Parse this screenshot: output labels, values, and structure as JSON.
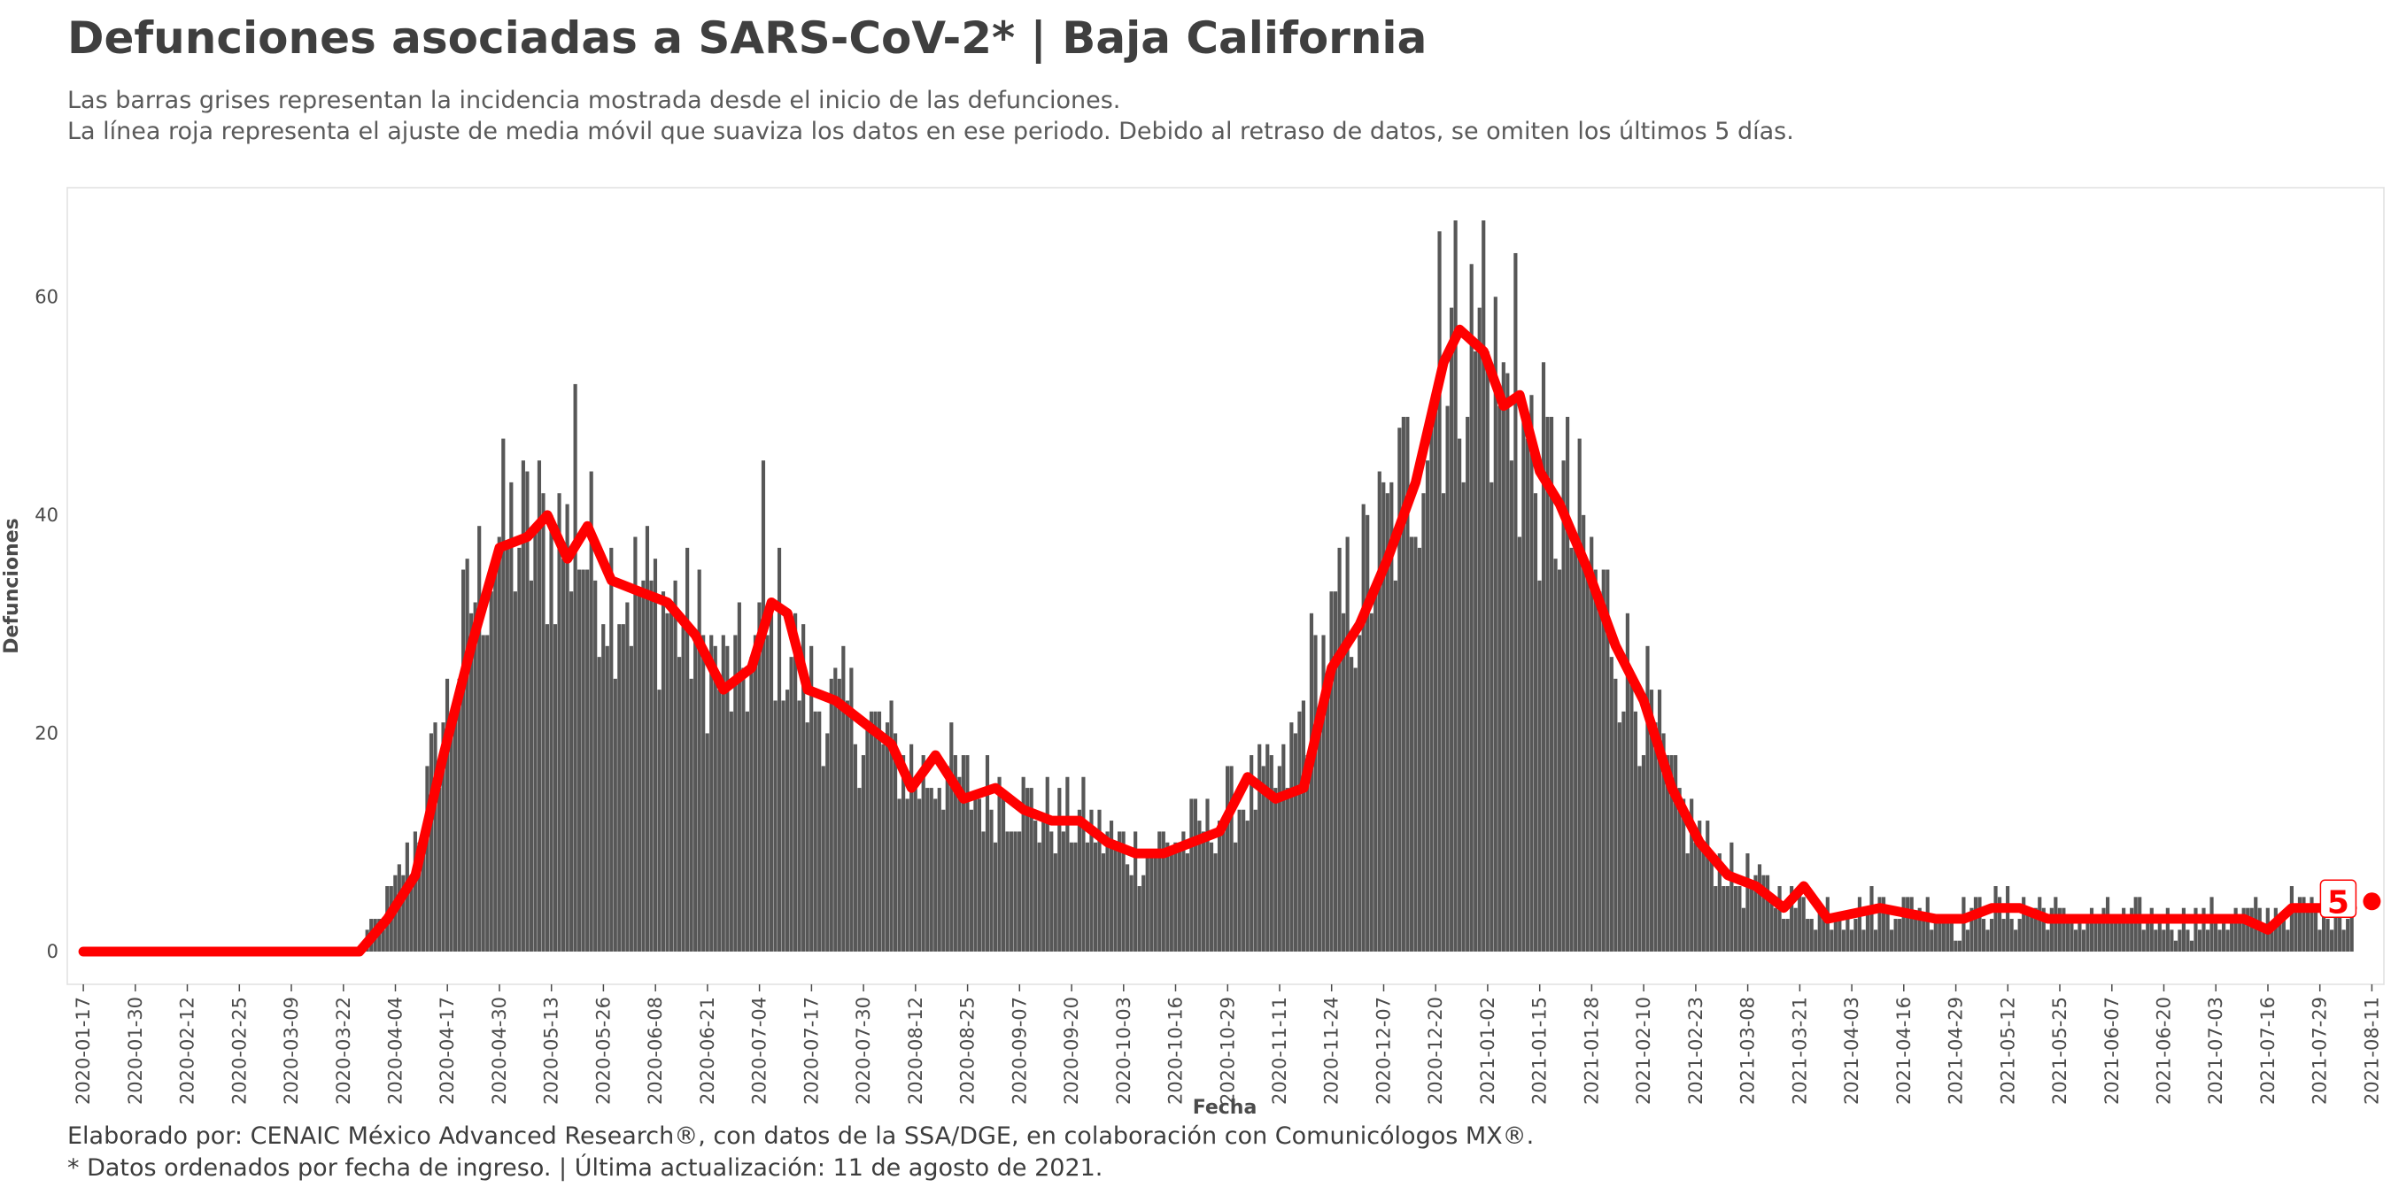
{
  "title": "Defunciones asociadas a SARS-CoV-2* | Baja California",
  "subtitle_line1": "Las barras grises representan la incidencia mostrada desde el inicio de las defunciones.",
  "subtitle_line2": "La línea roja representa el ajuste de media móvil que suaviza los datos en ese periodo. Debido al retraso de datos, se omiten los últimos 5 días.",
  "caption_line1": "Elaborado por: CENAIC México Advanced Research®, con datos de la SSA/DGE, en colaboración con Comunicólogos MX®.",
  "caption_line2": "* Datos ordenados por fecha de ingreso. | Última actualización: 11 de agosto de 2021.",
  "colors": {
    "bars": "#575757",
    "line": "#ff0000",
    "frame": "#e0e0e0",
    "text": "#3d3d3d"
  },
  "chart_data": {
    "type": "bar",
    "xlabel": "Fecha",
    "ylabel": "Defunciones",
    "x_tick_labels": [
      "2020-01-17",
      "2020-01-30",
      "2020-02-12",
      "2020-02-25",
      "2020-03-09",
      "2020-03-22",
      "2020-04-04",
      "2020-04-17",
      "2020-04-30",
      "2020-05-13",
      "2020-05-26",
      "2020-06-08",
      "2020-06-21",
      "2020-07-04",
      "2020-07-17",
      "2020-07-30",
      "2020-08-12",
      "2020-08-25",
      "2020-09-07",
      "2020-09-20",
      "2020-10-03",
      "2020-10-16",
      "2020-10-29",
      "2020-11-11",
      "2020-11-24",
      "2020-12-07",
      "2020-12-20",
      "2021-01-02",
      "2021-01-15",
      "2021-01-28",
      "2021-02-10",
      "2021-02-23",
      "2021-03-08",
      "2021-03-21",
      "2021-04-03",
      "2021-04-16",
      "2021-04-29",
      "2021-05-12",
      "2021-05-25",
      "2021-06-07",
      "2021-06-20",
      "2021-07-03",
      "2021-07-16",
      "2021-07-29",
      "2021-08-11"
    ],
    "y_ticks": [
      0,
      20,
      40,
      60
    ],
    "ylim": [
      -3,
      70
    ],
    "x_range": [
      "2020-01-13",
      "2021-08-14"
    ],
    "grid": false,
    "legend": "none",
    "daily_series": {
      "name": "Defunciones diarias",
      "start_date": "2020-03-26",
      "end_date": "2021-08-06",
      "weekly_keypoints": [
        [
          "2020-03-26",
          0
        ],
        [
          "2020-04-02",
          4
        ],
        [
          "2020-04-09",
          10
        ],
        [
          "2020-04-16",
          21
        ],
        [
          "2020-04-23",
          32
        ],
        [
          "2020-04-30",
          38
        ],
        [
          "2020-05-07",
          38
        ],
        [
          "2020-05-14",
          38
        ],
        [
          "2020-05-21",
          37
        ],
        [
          "2020-05-28",
          34
        ],
        [
          "2020-06-04",
          33
        ],
        [
          "2020-06-11",
          32
        ],
        [
          "2020-06-18",
          29
        ],
        [
          "2020-06-25",
          25
        ],
        [
          "2020-07-02",
          26
        ],
        [
          "2020-07-09",
          30
        ],
        [
          "2020-07-16",
          24
        ],
        [
          "2020-07-23",
          22
        ],
        [
          "2020-07-30",
          21
        ],
        [
          "2020-08-06",
          19
        ],
        [
          "2020-08-13",
          16
        ],
        [
          "2020-08-20",
          17
        ],
        [
          "2020-08-27",
          14
        ],
        [
          "2020-09-03",
          15
        ],
        [
          "2020-09-10",
          13
        ],
        [
          "2020-09-17",
          12
        ],
        [
          "2020-09-24",
          12
        ],
        [
          "2020-10-01",
          10
        ],
        [
          "2020-10-08",
          9
        ],
        [
          "2020-10-15",
          10
        ],
        [
          "2020-10-22",
          11
        ],
        [
          "2020-10-29",
          13
        ],
        [
          "2020-11-05",
          15
        ],
        [
          "2020-11-12",
          15
        ],
        [
          "2020-11-19",
          25
        ],
        [
          "2020-11-26",
          30
        ],
        [
          "2020-12-03",
          35
        ],
        [
          "2020-12-10",
          40
        ],
        [
          "2020-12-17",
          48
        ],
        [
          "2020-12-24",
          56
        ],
        [
          "2020-12-31",
          55
        ],
        [
          "2021-01-07",
          50
        ],
        [
          "2021-01-14",
          44
        ],
        [
          "2021-01-21",
          41
        ],
        [
          "2021-01-28",
          35
        ],
        [
          "2021-02-04",
          28
        ],
        [
          "2021-02-11",
          22
        ],
        [
          "2021-02-18",
          14
        ],
        [
          "2021-02-25",
          10
        ],
        [
          "2021-03-04",
          7
        ],
        [
          "2021-03-11",
          6
        ],
        [
          "2021-03-18",
          5
        ],
        [
          "2021-03-25",
          4
        ],
        [
          "2021-04-01",
          4
        ],
        [
          "2021-04-08",
          4
        ],
        [
          "2021-04-15",
          4
        ],
        [
          "2021-04-22",
          4
        ],
        [
          "2021-04-29",
          3
        ],
        [
          "2021-05-06",
          4
        ],
        [
          "2021-05-13",
          4
        ],
        [
          "2021-05-20",
          4
        ],
        [
          "2021-05-27",
          3
        ],
        [
          "2021-06-03",
          3
        ],
        [
          "2021-06-10",
          3
        ],
        [
          "2021-06-17",
          3
        ],
        [
          "2021-06-24",
          3
        ],
        [
          "2021-07-01",
          3
        ],
        [
          "2021-07-08",
          3
        ],
        [
          "2021-07-15",
          3
        ],
        [
          "2021-07-22",
          4
        ],
        [
          "2021-07-29",
          4
        ],
        [
          "2021-08-06",
          4
        ]
      ],
      "notable_peaks": [
        [
          "2020-05-19",
          52
        ],
        [
          "2020-07-05",
          45
        ],
        [
          "2020-12-21",
          66
        ],
        [
          "2021-01-01",
          67
        ],
        [
          "2021-01-09",
          64
        ]
      ]
    },
    "moving_average": {
      "name": "Media móvil",
      "points": [
        [
          "2020-01-17",
          0
        ],
        [
          "2020-03-26",
          0
        ],
        [
          "2020-04-02",
          3
        ],
        [
          "2020-04-09",
          7
        ],
        [
          "2020-04-16",
          18
        ],
        [
          "2020-04-23",
          28
        ],
        [
          "2020-04-30",
          37
        ],
        [
          "2020-05-07",
          38
        ],
        [
          "2020-05-12",
          40
        ],
        [
          "2020-05-17",
          36
        ],
        [
          "2020-05-22",
          39
        ],
        [
          "2020-05-28",
          34
        ],
        [
          "2020-06-04",
          33
        ],
        [
          "2020-06-11",
          32
        ],
        [
          "2020-06-18",
          29
        ],
        [
          "2020-06-25",
          24
        ],
        [
          "2020-07-02",
          26
        ],
        [
          "2020-07-07",
          32
        ],
        [
          "2020-07-11",
          31
        ],
        [
          "2020-07-16",
          24
        ],
        [
          "2020-07-23",
          23
        ],
        [
          "2020-07-30",
          21
        ],
        [
          "2020-08-06",
          19
        ],
        [
          "2020-08-11",
          15
        ],
        [
          "2020-08-17",
          18
        ],
        [
          "2020-08-24",
          14
        ],
        [
          "2020-09-01",
          15
        ],
        [
          "2020-09-08",
          13
        ],
        [
          "2020-09-15",
          12
        ],
        [
          "2020-09-22",
          12
        ],
        [
          "2020-09-29",
          10
        ],
        [
          "2020-10-06",
          9
        ],
        [
          "2020-10-13",
          9
        ],
        [
          "2020-10-20",
          10
        ],
        [
          "2020-10-27",
          11
        ],
        [
          "2020-11-03",
          16
        ],
        [
          "2020-11-10",
          14
        ],
        [
          "2020-11-17",
          15
        ],
        [
          "2020-11-24",
          26
        ],
        [
          "2020-12-01",
          30
        ],
        [
          "2020-12-08",
          36
        ],
        [
          "2020-12-15",
          43
        ],
        [
          "2020-12-22",
          54
        ],
        [
          "2020-12-26",
          57
        ],
        [
          "2021-01-01",
          55
        ],
        [
          "2021-01-06",
          50
        ],
        [
          "2021-01-10",
          51
        ],
        [
          "2021-01-15",
          44
        ],
        [
          "2021-01-20",
          41
        ],
        [
          "2021-01-27",
          35
        ],
        [
          "2021-02-03",
          28
        ],
        [
          "2021-02-10",
          23
        ],
        [
          "2021-02-17",
          15
        ],
        [
          "2021-02-24",
          10
        ],
        [
          "2021-03-03",
          7
        ],
        [
          "2021-03-10",
          6
        ],
        [
          "2021-03-17",
          4
        ],
        [
          "2021-03-22",
          6
        ],
        [
          "2021-03-28",
          3
        ],
        [
          "2021-04-10",
          4
        ],
        [
          "2021-04-24",
          3
        ],
        [
          "2021-05-01",
          3
        ],
        [
          "2021-05-08",
          4
        ],
        [
          "2021-05-15",
          4
        ],
        [
          "2021-05-22",
          3
        ],
        [
          "2021-05-29",
          3
        ],
        [
          "2021-06-05",
          3
        ],
        [
          "2021-06-12",
          3
        ],
        [
          "2021-06-19",
          3
        ],
        [
          "2021-06-26",
          3
        ],
        [
          "2021-07-03",
          3
        ],
        [
          "2021-07-10",
          3
        ],
        [
          "2021-07-16",
          2
        ],
        [
          "2021-07-22",
          4
        ],
        [
          "2021-07-29",
          4
        ],
        [
          "2021-08-06",
          4
        ]
      ]
    },
    "end_label": {
      "text": "5",
      "date": "2021-08-11",
      "value": 5
    }
  }
}
